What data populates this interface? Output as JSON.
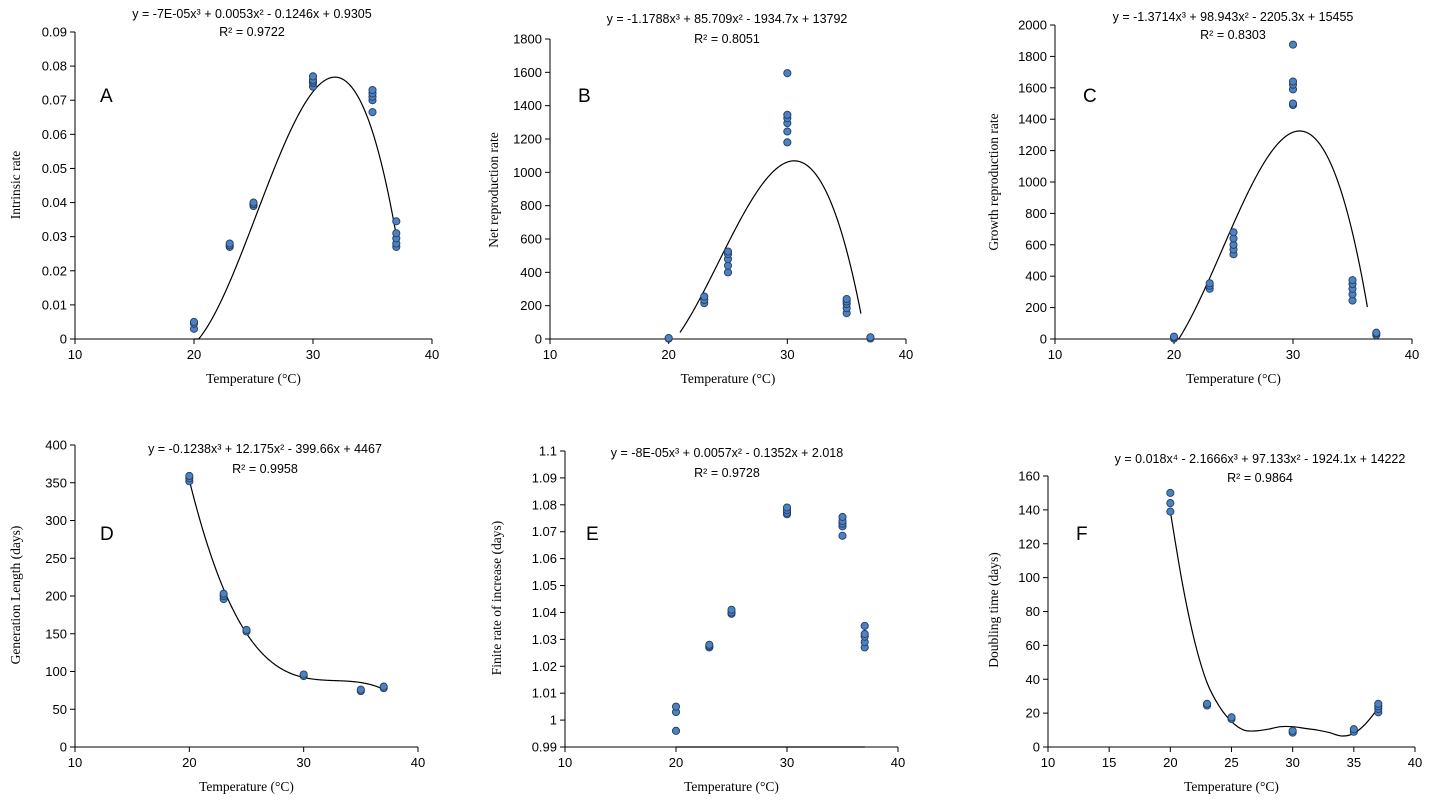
{
  "chart_data": [
    {
      "type": "scatter",
      "panel_label": "A",
      "equation": "y = -7E-05x³ + 0.0053x² - 0.1246x + 0.9305",
      "r2": "R² = 0.9722",
      "xlabel": "Temperature  (°C)",
      "ylabel": "Intrinsic  rate",
      "xlim": [
        10,
        40
      ],
      "ylim": [
        0,
        0.09
      ],
      "x_ticks": [
        "10",
        "20",
        "30",
        "40"
      ],
      "y_ticks": [
        "0",
        "0.01",
        "0.02",
        "0.03",
        "0.04",
        "0.05",
        "0.06",
        "0.07",
        "0.08",
        "0.09"
      ],
      "points": [
        [
          20,
          0.003
        ],
        [
          20,
          0.0045
        ],
        [
          20,
          0.005
        ],
        [
          23,
          0.027
        ],
        [
          23,
          0.0275
        ],
        [
          23,
          0.028
        ],
        [
          25,
          0.039
        ],
        [
          25,
          0.0395
        ],
        [
          25,
          0.04
        ],
        [
          30,
          0.074
        ],
        [
          30,
          0.075
        ],
        [
          30,
          0.0755
        ],
        [
          30,
          0.076
        ],
        [
          30,
          0.077
        ],
        [
          35,
          0.0665
        ],
        [
          35,
          0.07
        ],
        [
          35,
          0.071
        ],
        [
          35,
          0.072
        ],
        [
          35,
          0.073
        ],
        [
          37,
          0.027
        ],
        [
          37,
          0.028
        ],
        [
          37,
          0.0295
        ],
        [
          37,
          0.031
        ],
        [
          37,
          0.0345
        ]
      ],
      "fit": {
        "kind": "poly",
        "coef": [
          -7e-05,
          0.0053,
          -0.1246,
          0.9305
        ],
        "x_range": [
          20,
          37
        ]
      }
    },
    {
      "type": "scatter",
      "panel_label": "B",
      "equation": "y = -1.1788x³ + 85.709x² - 1934.7x + 13792",
      "r2": "R² = 0.8051",
      "xlabel": "Temperature  (°C)",
      "ylabel": "Net reproduction  rate",
      "xlim": [
        10,
        40
      ],
      "ylim": [
        0,
        1800
      ],
      "x_ticks": [
        "10",
        "20",
        "30",
        "40"
      ],
      "y_ticks": [
        "0",
        "200",
        "400",
        "600",
        "800",
        "1000",
        "1200",
        "1400",
        "1600",
        "1800"
      ],
      "points": [
        [
          20,
          2
        ],
        [
          20,
          6
        ],
        [
          23,
          215
        ],
        [
          23,
          235
        ],
        [
          23,
          255
        ],
        [
          25,
          400
        ],
        [
          25,
          440
        ],
        [
          25,
          480
        ],
        [
          25,
          510
        ],
        [
          25,
          525
        ],
        [
          30,
          1180
        ],
        [
          30,
          1245
        ],
        [
          30,
          1295
        ],
        [
          30,
          1325
        ],
        [
          30,
          1345
        ],
        [
          30,
          1595
        ],
        [
          35,
          155
        ],
        [
          35,
          185
        ],
        [
          35,
          210
        ],
        [
          35,
          225
        ],
        [
          35,
          240
        ],
        [
          37,
          3
        ],
        [
          37,
          10
        ]
      ],
      "fit": {
        "kind": "poly",
        "coef": [
          -1.1788,
          85.709,
          -1934.7,
          13792
        ],
        "x_range": [
          20.95,
          36.2
        ]
      }
    },
    {
      "type": "scatter",
      "panel_label": "C",
      "equation": "y = -1.3714x³ + 98.943x² - 2205.3x + 15455",
      "r2": "R² = 0.8303",
      "xlabel": "Temperature  (°C)",
      "ylabel": "Growth  reproduction  rate",
      "xlim": [
        10,
        40
      ],
      "ylim": [
        0,
        2000
      ],
      "x_ticks": [
        "10",
        "20",
        "30",
        "40"
      ],
      "y_ticks": [
        "0",
        "200",
        "400",
        "600",
        "800",
        "1000",
        "1200",
        "1400",
        "1600",
        "1800",
        "2000"
      ],
      "points": [
        [
          20,
          2
        ],
        [
          20,
          10
        ],
        [
          20,
          15
        ],
        [
          23,
          320
        ],
        [
          23,
          340
        ],
        [
          23,
          355
        ],
        [
          25,
          540
        ],
        [
          25,
          570
        ],
        [
          25,
          600
        ],
        [
          25,
          640
        ],
        [
          25,
          680
        ],
        [
          30,
          1490
        ],
        [
          30,
          1500
        ],
        [
          30,
          1590
        ],
        [
          30,
          1620
        ],
        [
          30,
          1640
        ],
        [
          30,
          1875
        ],
        [
          35,
          245
        ],
        [
          35,
          285
        ],
        [
          35,
          320
        ],
        [
          35,
          350
        ],
        [
          35,
          375
        ],
        [
          37,
          25
        ],
        [
          37,
          35
        ],
        [
          37,
          40
        ]
      ],
      "fit": {
        "kind": "poly",
        "coef": [
          -1.3714,
          98.943,
          -2205.3,
          15455
        ],
        "x_range": [
          20.2,
          36.25
        ]
      }
    },
    {
      "type": "scatter",
      "panel_label": "D",
      "equation": "y = -0.1238x³ + 12.175x² - 399.66x + 4467",
      "r2": "R² = 0.9958",
      "xlabel": "Temperature  (°C)",
      "ylabel": "Generation  Length  (days)",
      "xlim": [
        10,
        40
      ],
      "ylim": [
        0,
        400
      ],
      "x_ticks": [
        "10",
        "20",
        "30",
        "40"
      ],
      "y_ticks": [
        "0",
        "50",
        "100",
        "150",
        "200",
        "250",
        "300",
        "350",
        "400"
      ],
      "points": [
        [
          20,
          352
        ],
        [
          20,
          356
        ],
        [
          20,
          359
        ],
        [
          23,
          196
        ],
        [
          23,
          200
        ],
        [
          23,
          203
        ],
        [
          25,
          153
        ],
        [
          25,
          155
        ],
        [
          30,
          94
        ],
        [
          30,
          96
        ],
        [
          35,
          74
        ],
        [
          35,
          76
        ],
        [
          37,
          78
        ],
        [
          37,
          80
        ]
      ],
      "fit": {
        "kind": "poly",
        "coef": [
          -0.1238,
          12.175,
          -399.66,
          4467
        ],
        "x_range": [
          20,
          37
        ]
      }
    },
    {
      "type": "scatter",
      "panel_label": "E",
      "equation": "y = -8E-05x³ + 0.0057x² - 0.1352x + 2.018",
      "r2": "R² = 0.9728",
      "xlabel": "Temperature  (°C)",
      "ylabel": "Finite  rate of increase  (days)",
      "xlim": [
        10,
        40
      ],
      "ylim": [
        0.99,
        1.1
      ],
      "x_ticks": [
        "10",
        "20",
        "30",
        "40"
      ],
      "y_ticks": [
        "0.99",
        "1",
        "1.01",
        "1.02",
        "1.03",
        "1.04",
        "1.05",
        "1.06",
        "1.07",
        "1.08",
        "1.09",
        "1.1"
      ],
      "points": [
        [
          20,
          0.996
        ],
        [
          20,
          1.003
        ],
        [
          20,
          1.005
        ],
        [
          23,
          1.027
        ],
        [
          23,
          1.0275
        ],
        [
          23,
          1.028
        ],
        [
          25,
          1.0395
        ],
        [
          25,
          1.04
        ],
        [
          25,
          1.041
        ],
        [
          30,
          1.0765
        ],
        [
          30,
          1.077
        ],
        [
          30,
          1.078
        ],
        [
          30,
          1.079
        ],
        [
          35,
          1.0685
        ],
        [
          35,
          1.072
        ],
        [
          35,
          1.073
        ],
        [
          35,
          1.074
        ],
        [
          35,
          1.0755
        ],
        [
          37,
          1.027
        ],
        [
          37,
          1.029
        ],
        [
          37,
          1.031
        ],
        [
          37,
          1.032
        ],
        [
          37,
          1.035
        ]
      ],
      "fit": {
        "kind": "poly",
        "coef": [
          -8e-05,
          0.0057,
          -0.1352,
          2.018
        ],
        "x_range": [
          20,
          37
        ]
      }
    },
    {
      "type": "scatter",
      "panel_label": "F",
      "equation": "y = 0.018x⁴ - 2.1666x³ + 97.133x² - 1924.1x + 14222",
      "r2": "R² = 0.9864",
      "xlabel": "Temperature  (°C)",
      "ylabel": "Doubling  time  (days)",
      "xlim": [
        10,
        40
      ],
      "ylim": [
        0,
        160
      ],
      "x_ticks": [
        "10",
        "15",
        "20",
        "25",
        "30",
        "35",
        "40"
      ],
      "y_ticks": [
        "0",
        "20",
        "40",
        "60",
        "80",
        "100",
        "120",
        "140",
        "160"
      ],
      "points": [
        [
          20,
          139
        ],
        [
          20,
          144
        ],
        [
          20,
          150
        ],
        [
          23,
          24.5
        ],
        [
          23,
          25.5
        ],
        [
          25,
          16.5
        ],
        [
          25,
          17.5
        ],
        [
          30,
          8.5
        ],
        [
          30,
          9.5
        ],
        [
          35,
          9
        ],
        [
          35,
          10.5
        ],
        [
          37,
          20.5
        ],
        [
          37,
          22.5
        ],
        [
          37,
          24
        ],
        [
          37,
          25.5
        ]
      ],
      "fit": {
        "kind": "spline",
        "nodes": [
          [
            20,
            139
          ],
          [
            21,
            96
          ],
          [
            22,
            62
          ],
          [
            23,
            38
          ],
          [
            24,
            24
          ],
          [
            25,
            15
          ],
          [
            26,
            10
          ],
          [
            27,
            9.5
          ],
          [
            28,
            10.5
          ],
          [
            29,
            12
          ],
          [
            30,
            12
          ],
          [
            31,
            11
          ],
          [
            32,
            10
          ],
          [
            33,
            8.5
          ],
          [
            34,
            6.5
          ],
          [
            35,
            8
          ],
          [
            36,
            14
          ],
          [
            37,
            23
          ]
        ]
      }
    }
  ]
}
